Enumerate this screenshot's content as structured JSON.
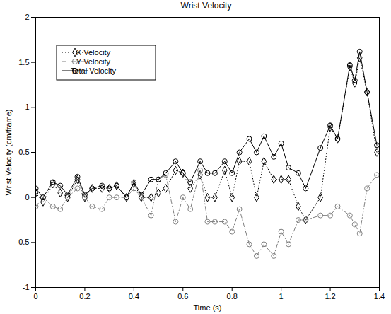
{
  "chart_data": {
    "type": "line",
    "title": "Wrist Velocity",
    "x_label": "Time (s)",
    "y_label": "Wrist Velocity (cm/frame)",
    "x": [
      0,
      0.03,
      0.07,
      0.1,
      0.13,
      0.17,
      0.2,
      0.23,
      0.27,
      0.3,
      0.33,
      0.37,
      0.4,
      0.43,
      0.47,
      0.5,
      0.53,
      0.57,
      0.6,
      0.63,
      0.67,
      0.7,
      0.73,
      0.77,
      0.8,
      0.83,
      0.87,
      0.9,
      0.93,
      0.97,
      1.0,
      1.03,
      1.07,
      1.1,
      1.16,
      1.2,
      1.23,
      1.28,
      1.3,
      1.32,
      1.35,
      1.39
    ],
    "series": [
      {
        "name": "X Velocity",
        "color": "#000000",
        "marker": "diamond",
        "line_style": "dotted",
        "values": [
          0.05,
          -0.05,
          0.15,
          0.05,
          0,
          0.2,
          0,
          0.1,
          0.1,
          0.1,
          0.13,
          0,
          0.15,
          0,
          0,
          0.05,
          0.1,
          0.3,
          0.27,
          0.1,
          0.25,
          0,
          0,
          0.3,
          0,
          0.4,
          0.4,
          0,
          0.4,
          0.2,
          0.2,
          0.2,
          -0.1,
          -0.25,
          0,
          0.78,
          0.65,
          1.45,
          1.27,
          1.55,
          1.17,
          0.5
        ]
      },
      {
        "name": "Y Velocity",
        "color": "#7f7f7f",
        "marker": "circle",
        "line_style": "dashdot",
        "values": [
          -0.1,
          0,
          -0.1,
          -0.13,
          0,
          0.1,
          0,
          -0.1,
          -0.13,
          0,
          0,
          0,
          0.1,
          0,
          -0.2,
          0.2,
          0.25,
          -0.27,
          0,
          -0.13,
          0.3,
          -0.27,
          -0.27,
          -0.27,
          -0.38,
          -0.13,
          -0.52,
          -0.65,
          -0.52,
          -0.65,
          -0.38,
          -0.52,
          -0.25,
          -0.25,
          -0.2,
          -0.2,
          -0.1,
          -0.2,
          -0.3,
          -0.4,
          0.1,
          0.25
        ]
      },
      {
        "name": "Total Velocity",
        "color": "#000000",
        "marker": "circle",
        "line_style": "solid",
        "values": [
          0.1,
          0,
          0.17,
          0.13,
          0.03,
          0.23,
          0.03,
          0.1,
          0.13,
          0.1,
          0.13,
          0,
          0.17,
          0.03,
          0.2,
          0.2,
          0.27,
          0.4,
          0.27,
          0.17,
          0.4,
          0.27,
          0.27,
          0.4,
          0.27,
          0.5,
          0.65,
          0.5,
          0.68,
          0.45,
          0.6,
          0.33,
          0.27,
          0.1,
          0.55,
          0.8,
          0.65,
          1.47,
          1.3,
          1.62,
          1.17,
          0.58
        ]
      }
    ],
    "xlim": [
      0,
      1.4
    ],
    "xticks": [
      0,
      0.2,
      0.4,
      0.6,
      0.8,
      1,
      1.2,
      1.4
    ],
    "ylim": [
      -1,
      2
    ],
    "yticks": [
      -1,
      -0.5,
      0,
      0.5,
      1,
      1.5,
      2
    ],
    "grid": false,
    "legend": "upper left"
  }
}
